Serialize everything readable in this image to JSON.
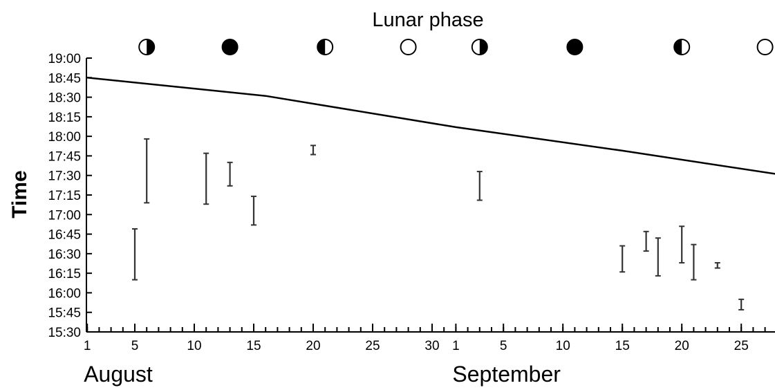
{
  "chart_data": {
    "type": "errorbar",
    "title": "Lunar phase",
    "ylabel": "Time",
    "ylim": [
      "15:30",
      "19:00"
    ],
    "y_ticks": [
      "15:30",
      "15:45",
      "16:00",
      "16:15",
      "16:30",
      "16:45",
      "17:00",
      "17:15",
      "17:30",
      "17:45",
      "18:00",
      "18:15",
      "18:30",
      "18:45",
      "19:00"
    ],
    "x_ticks": [
      {
        "label": "1",
        "date": "Aug 1"
      },
      {
        "label": "5",
        "date": "Aug 5"
      },
      {
        "label": "10",
        "date": "Aug 10"
      },
      {
        "label": "15",
        "date": "Aug 15"
      },
      {
        "label": "20",
        "date": "Aug 20"
      },
      {
        "label": "25",
        "date": "Aug 25"
      },
      {
        "label": "30",
        "date": "Aug 30"
      },
      {
        "label": "1",
        "date": "Sep 1"
      },
      {
        "label": "5",
        "date": "Sep 5"
      },
      {
        "label": "10",
        "date": "Sep 10"
      },
      {
        "label": "15",
        "date": "Sep 15"
      },
      {
        "label": "20",
        "date": "Sep 20"
      },
      {
        "label": "25",
        "date": "Sep 25"
      }
    ],
    "month_labels": [
      {
        "label": "August",
        "date": "Aug 1"
      },
      {
        "label": "September",
        "date": "Sep 1"
      }
    ],
    "xlim": [
      "Aug 1",
      "Sep 28"
    ],
    "sunset_line": [
      {
        "date": "Aug 1",
        "time": "18:45"
      },
      {
        "date": "Aug 16",
        "time": "18:31"
      },
      {
        "date": "Aug 20",
        "time": "18:25"
      },
      {
        "date": "Sep 1",
        "time": "18:07"
      },
      {
        "date": "Sep 15",
        "time": "17:49"
      },
      {
        "date": "Sep 28",
        "time": "17:31"
      }
    ],
    "ranges": [
      {
        "date": "Aug 5",
        "low": "16:10",
        "high": "16:49"
      },
      {
        "date": "Aug 6",
        "low": "17:09",
        "high": "17:58"
      },
      {
        "date": "Aug 11",
        "low": "17:08",
        "high": "17:47"
      },
      {
        "date": "Aug 13",
        "low": "17:22",
        "high": "17:40"
      },
      {
        "date": "Aug 15",
        "low": "16:52",
        "high": "17:14"
      },
      {
        "date": "Aug 20",
        "low": "17:46",
        "high": "17:53"
      },
      {
        "date": "Sep 3",
        "low": "17:11",
        "high": "17:33"
      },
      {
        "date": "Sep 15",
        "low": "16:16",
        "high": "16:36"
      },
      {
        "date": "Sep 17",
        "low": "16:32",
        "high": "16:47"
      },
      {
        "date": "Sep 18",
        "low": "16:13",
        "high": "16:42"
      },
      {
        "date": "Sep 20",
        "low": "16:23",
        "high": "16:51"
      },
      {
        "date": "Sep 21",
        "low": "16:10",
        "high": "16:37"
      },
      {
        "date": "Sep 23",
        "low": "16:19",
        "high": "16:23"
      },
      {
        "date": "Sep 25",
        "low": "15:47",
        "high": "15:55"
      }
    ],
    "lunar_phases": [
      {
        "date": "Aug 6",
        "phase": "waning-quarter"
      },
      {
        "date": "Aug 13",
        "phase": "new-moon"
      },
      {
        "date": "Aug 21",
        "phase": "waxing-quarter"
      },
      {
        "date": "Aug 28",
        "phase": "full-moon"
      },
      {
        "date": "Sep 3",
        "phase": "waning-quarter"
      },
      {
        "date": "Sep 11",
        "phase": "new-moon"
      },
      {
        "date": "Sep 20",
        "phase": "waxing-quarter"
      },
      {
        "date": "Sep 27",
        "phase": "full-moon"
      }
    ],
    "grid": false,
    "legend": "none"
  }
}
